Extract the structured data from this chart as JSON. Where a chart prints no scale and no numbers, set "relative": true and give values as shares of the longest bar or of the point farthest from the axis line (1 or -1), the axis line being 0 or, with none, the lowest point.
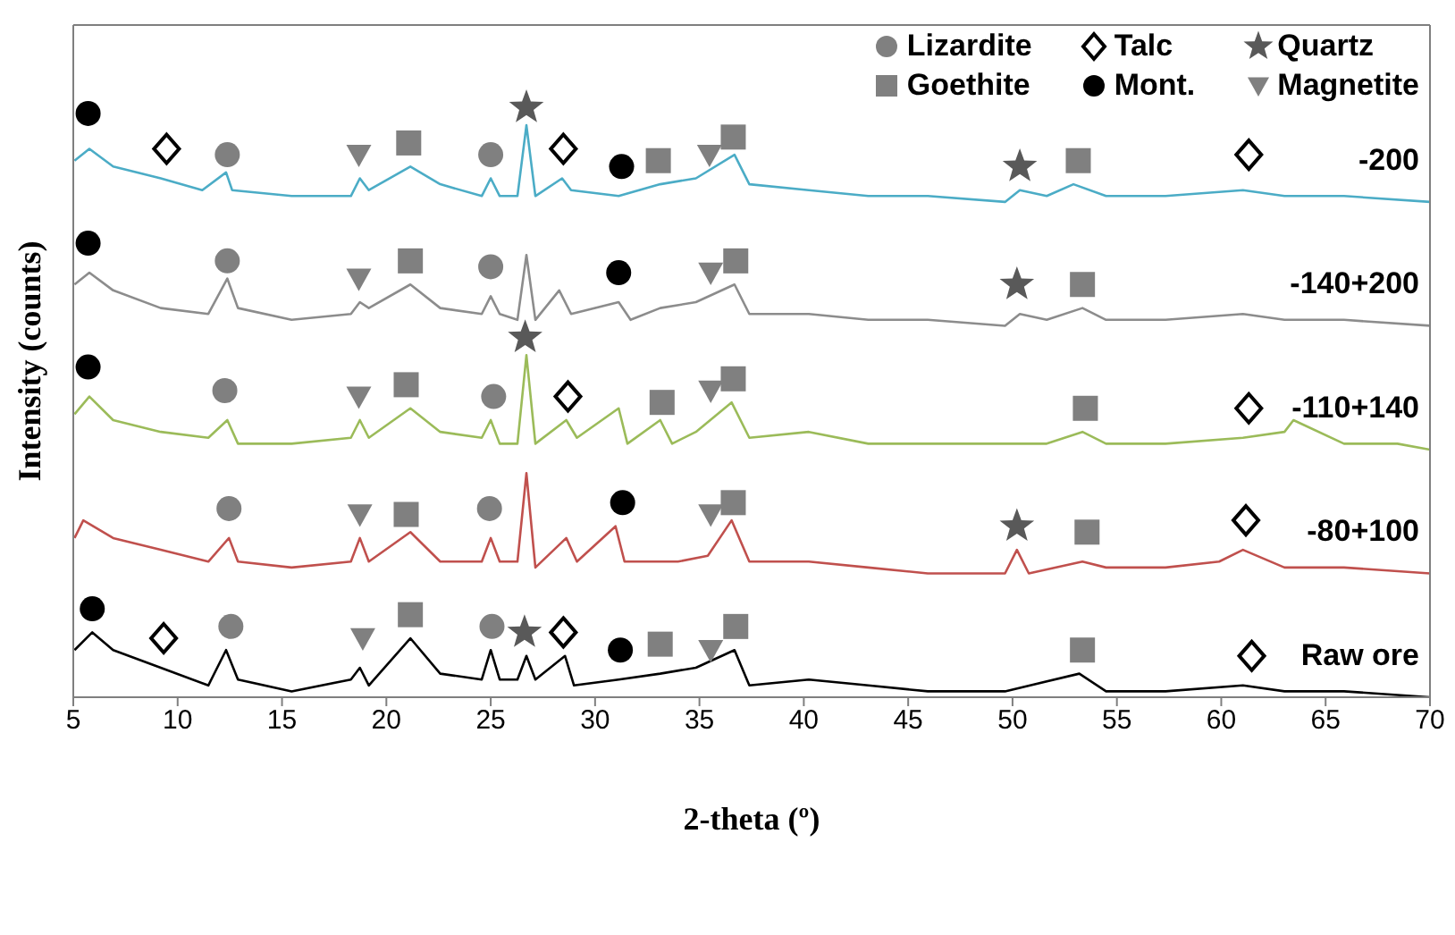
{
  "chart_data": {
    "type": "line",
    "xlabel": "2-theta (º)",
    "ylabel": "Intensity (counts)",
    "relative": true,
    "xlim": [
      5,
      70
    ],
    "xticks": [
      5,
      10,
      15,
      20,
      25,
      30,
      35,
      40,
      45,
      50,
      55,
      60,
      65,
      70
    ],
    "grid": false,
    "legend": "top right",
    "series": [
      {
        "name": "-200",
        "type": "line",
        "color": "#4bacc6",
        "marker": "none",
        "x": [
          5.06,
          5.77,
          6.91,
          9.19,
          11.18,
          12.32,
          12.61,
          15.46,
          18.3,
          18.73,
          19.16,
          21.15,
          22.58,
          24.57,
          25.0,
          25.43,
          26.28,
          26.71,
          27.14,
          28.42,
          28.85,
          31.13,
          33.12,
          34.83,
          36.68,
          37.39,
          40.24,
          43.09,
          45.94,
          49.64,
          50.35,
          51.64,
          52.92,
          54.48,
          57.33,
          61.04,
          63.03,
          65.88,
          70.0
        ],
        "values": [
          0.91,
          0.93,
          0.9,
          0.88,
          0.86,
          0.89,
          0.86,
          0.85,
          0.85,
          0.88,
          0.86,
          0.9,
          0.87,
          0.85,
          0.88,
          0.85,
          0.85,
          0.97,
          0.85,
          0.88,
          0.86,
          0.85,
          0.87,
          0.88,
          0.92,
          0.87,
          0.86,
          0.85,
          0.85,
          0.84,
          0.86,
          0.85,
          0.87,
          0.85,
          0.85,
          0.86,
          0.85,
          0.85,
          0.84
        ]
      },
      {
        "name": "-140+200",
        "type": "line",
        "color": "#8c8c8c",
        "marker": "none",
        "x": [
          5.06,
          5.77,
          6.91,
          9.19,
          11.47,
          12.38,
          12.89,
          15.46,
          18.3,
          18.73,
          19.16,
          21.15,
          22.58,
          24.57,
          25.0,
          25.43,
          26.28,
          26.71,
          27.14,
          28.28,
          28.85,
          31.13,
          31.7,
          33.12,
          34.83,
          36.68,
          37.39,
          40.24,
          43.09,
          45.94,
          49.64,
          50.35,
          51.64,
          53.35,
          54.48,
          57.33,
          61.04,
          63.03,
          65.88,
          70.0
        ],
        "values": [
          0.7,
          0.72,
          0.69,
          0.66,
          0.65,
          0.71,
          0.66,
          0.64,
          0.65,
          0.67,
          0.66,
          0.7,
          0.66,
          0.65,
          0.68,
          0.65,
          0.64,
          0.75,
          0.64,
          0.69,
          0.65,
          0.67,
          0.64,
          0.66,
          0.67,
          0.7,
          0.65,
          0.65,
          0.64,
          0.64,
          0.63,
          0.65,
          0.64,
          0.66,
          0.64,
          0.64,
          0.65,
          0.64,
          0.64,
          0.63
        ]
      },
      {
        "name": "-110+140",
        "type": "line",
        "color": "#9bbb59",
        "marker": "none",
        "x": [
          5.06,
          5.77,
          6.91,
          9.19,
          11.47,
          12.38,
          12.89,
          15.46,
          18.3,
          18.73,
          19.16,
          21.15,
          22.58,
          24.57,
          25.0,
          25.43,
          26.28,
          26.71,
          27.14,
          28.62,
          29.13,
          31.13,
          31.55,
          33.12,
          33.69,
          34.83,
          36.54,
          37.39,
          40.24,
          43.09,
          45.94,
          49.64,
          50.35,
          51.64,
          53.35,
          54.48,
          57.33,
          61.04,
          63.03,
          63.46,
          65.88,
          68.44,
          70.0
        ],
        "values": [
          0.48,
          0.51,
          0.47,
          0.45,
          0.44,
          0.47,
          0.43,
          0.43,
          0.44,
          0.47,
          0.44,
          0.49,
          0.45,
          0.44,
          0.47,
          0.43,
          0.43,
          0.58,
          0.43,
          0.47,
          0.44,
          0.49,
          0.43,
          0.47,
          0.43,
          0.45,
          0.5,
          0.44,
          0.45,
          0.43,
          0.43,
          0.43,
          0.43,
          0.43,
          0.45,
          0.43,
          0.43,
          0.44,
          0.45,
          0.47,
          0.43,
          0.43,
          0.42
        ]
      },
      {
        "name": "-80+100",
        "type": "line",
        "color": "#c0504d",
        "marker": "none",
        "x": [
          5.06,
          5.48,
          6.91,
          9.19,
          11.47,
          12.46,
          12.89,
          15.46,
          18.3,
          18.73,
          19.16,
          21.15,
          22.58,
          24.57,
          25.0,
          25.43,
          26.28,
          26.71,
          27.14,
          28.62,
          29.13,
          30.98,
          31.41,
          33.97,
          35.4,
          36.54,
          37.39,
          40.24,
          43.09,
          45.94,
          49.64,
          50.21,
          50.78,
          53.35,
          54.48,
          57.33,
          59.9,
          61.04,
          63.03,
          65.88,
          70.0
        ],
        "values": [
          0.27,
          0.3,
          0.27,
          0.25,
          0.23,
          0.27,
          0.23,
          0.22,
          0.23,
          0.27,
          0.23,
          0.28,
          0.23,
          0.23,
          0.27,
          0.23,
          0.23,
          0.38,
          0.22,
          0.27,
          0.23,
          0.29,
          0.23,
          0.23,
          0.24,
          0.3,
          0.23,
          0.23,
          0.22,
          0.21,
          0.21,
          0.25,
          0.21,
          0.23,
          0.22,
          0.22,
          0.23,
          0.25,
          0.22,
          0.22,
          0.21
        ]
      },
      {
        "name": "Raw ore",
        "type": "line",
        "color": "#000000",
        "marker": "none",
        "x": [
          5.06,
          5.91,
          6.91,
          9.19,
          11.47,
          12.32,
          12.89,
          15.46,
          18.3,
          18.73,
          19.16,
          21.15,
          22.58,
          24.57,
          25.0,
          25.43,
          26.28,
          26.71,
          27.14,
          28.56,
          28.99,
          31.13,
          33.12,
          34.83,
          36.68,
          37.39,
          40.24,
          43.09,
          45.94,
          49.64,
          53.2,
          54.48,
          57.33,
          61.04,
          63.03,
          65.88,
          70.0
        ],
        "values": [
          0.08,
          0.11,
          0.08,
          0.05,
          0.02,
          0.08,
          0.03,
          0.01,
          0.03,
          0.05,
          0.02,
          0.1,
          0.04,
          0.03,
          0.08,
          0.03,
          0.03,
          0.07,
          0.03,
          0.07,
          0.02,
          0.03,
          0.04,
          0.05,
          0.08,
          0.02,
          0.03,
          0.02,
          0.01,
          0.01,
          0.04,
          0.01,
          0.01,
          0.02,
          0.01,
          0.01,
          0.0
        ]
      },
      {
        "name": "Lizardite",
        "type": "scatter",
        "color": "#808080",
        "marker": "circle",
        "x": [
          12.38,
          25.0,
          12.38,
          25.0,
          12.26,
          25.14,
          12.46,
          24.94,
          12.55,
          25.06
        ],
        "values": [
          0.92,
          0.92,
          0.74,
          0.73,
          0.52,
          0.51,
          0.32,
          0.32,
          0.12,
          0.12
        ]
      },
      {
        "name": "Talc",
        "type": "scatter",
        "color": "#000000",
        "marker": "diamond",
        "x": [
          9.47,
          28.48,
          61.32,
          28.7,
          61.32,
          61.18,
          9.33,
          28.48,
          61.46
        ],
        "values": [
          0.93,
          0.93,
          0.92,
          0.51,
          0.49,
          0.3,
          0.1,
          0.11,
          0.07
        ]
      },
      {
        "name": "Quartz",
        "type": "scatter",
        "color": "#595959",
        "marker": "star",
        "x": [
          26.71,
          50.35,
          50.21,
          26.65,
          50.21,
          26.62
        ],
        "values": [
          1.0,
          0.9,
          0.7,
          0.61,
          0.29,
          0.11
        ]
      },
      {
        "name": "Goethite",
        "type": "scatter",
        "color": "#808080",
        "marker": "square",
        "x": [
          21.07,
          33.03,
          36.62,
          53.15,
          21.15,
          36.74,
          53.35,
          20.95,
          33.21,
          36.62,
          53.49,
          20.95,
          36.62,
          53.57,
          21.15,
          33.12,
          36.74,
          53.35
        ],
        "values": [
          0.94,
          0.91,
          0.95,
          0.91,
          0.74,
          0.74,
          0.7,
          0.53,
          0.5,
          0.54,
          0.49,
          0.31,
          0.33,
          0.28,
          0.14,
          0.09,
          0.12,
          0.08
        ]
      },
      {
        "name": "Mont.",
        "type": "scatter",
        "color": "#000000",
        "marker": "circle",
        "x": [
          5.71,
          31.27,
          5.71,
          31.13,
          5.71,
          31.32,
          5.91,
          31.21
        ],
        "values": [
          0.99,
          0.9,
          0.77,
          0.72,
          0.56,
          0.33,
          0.15,
          0.08
        ]
      },
      {
        "name": "Magnetite",
        "type": "scatter",
        "color": "#808080",
        "marker": "triangle",
        "x": [
          18.68,
          35.48,
          18.68,
          35.54,
          18.68,
          35.54,
          18.73,
          35.54,
          18.87,
          35.54
        ],
        "values": [
          0.92,
          0.92,
          0.71,
          0.72,
          0.51,
          0.52,
          0.31,
          0.31,
          0.1,
          0.08
        ]
      }
    ]
  }
}
